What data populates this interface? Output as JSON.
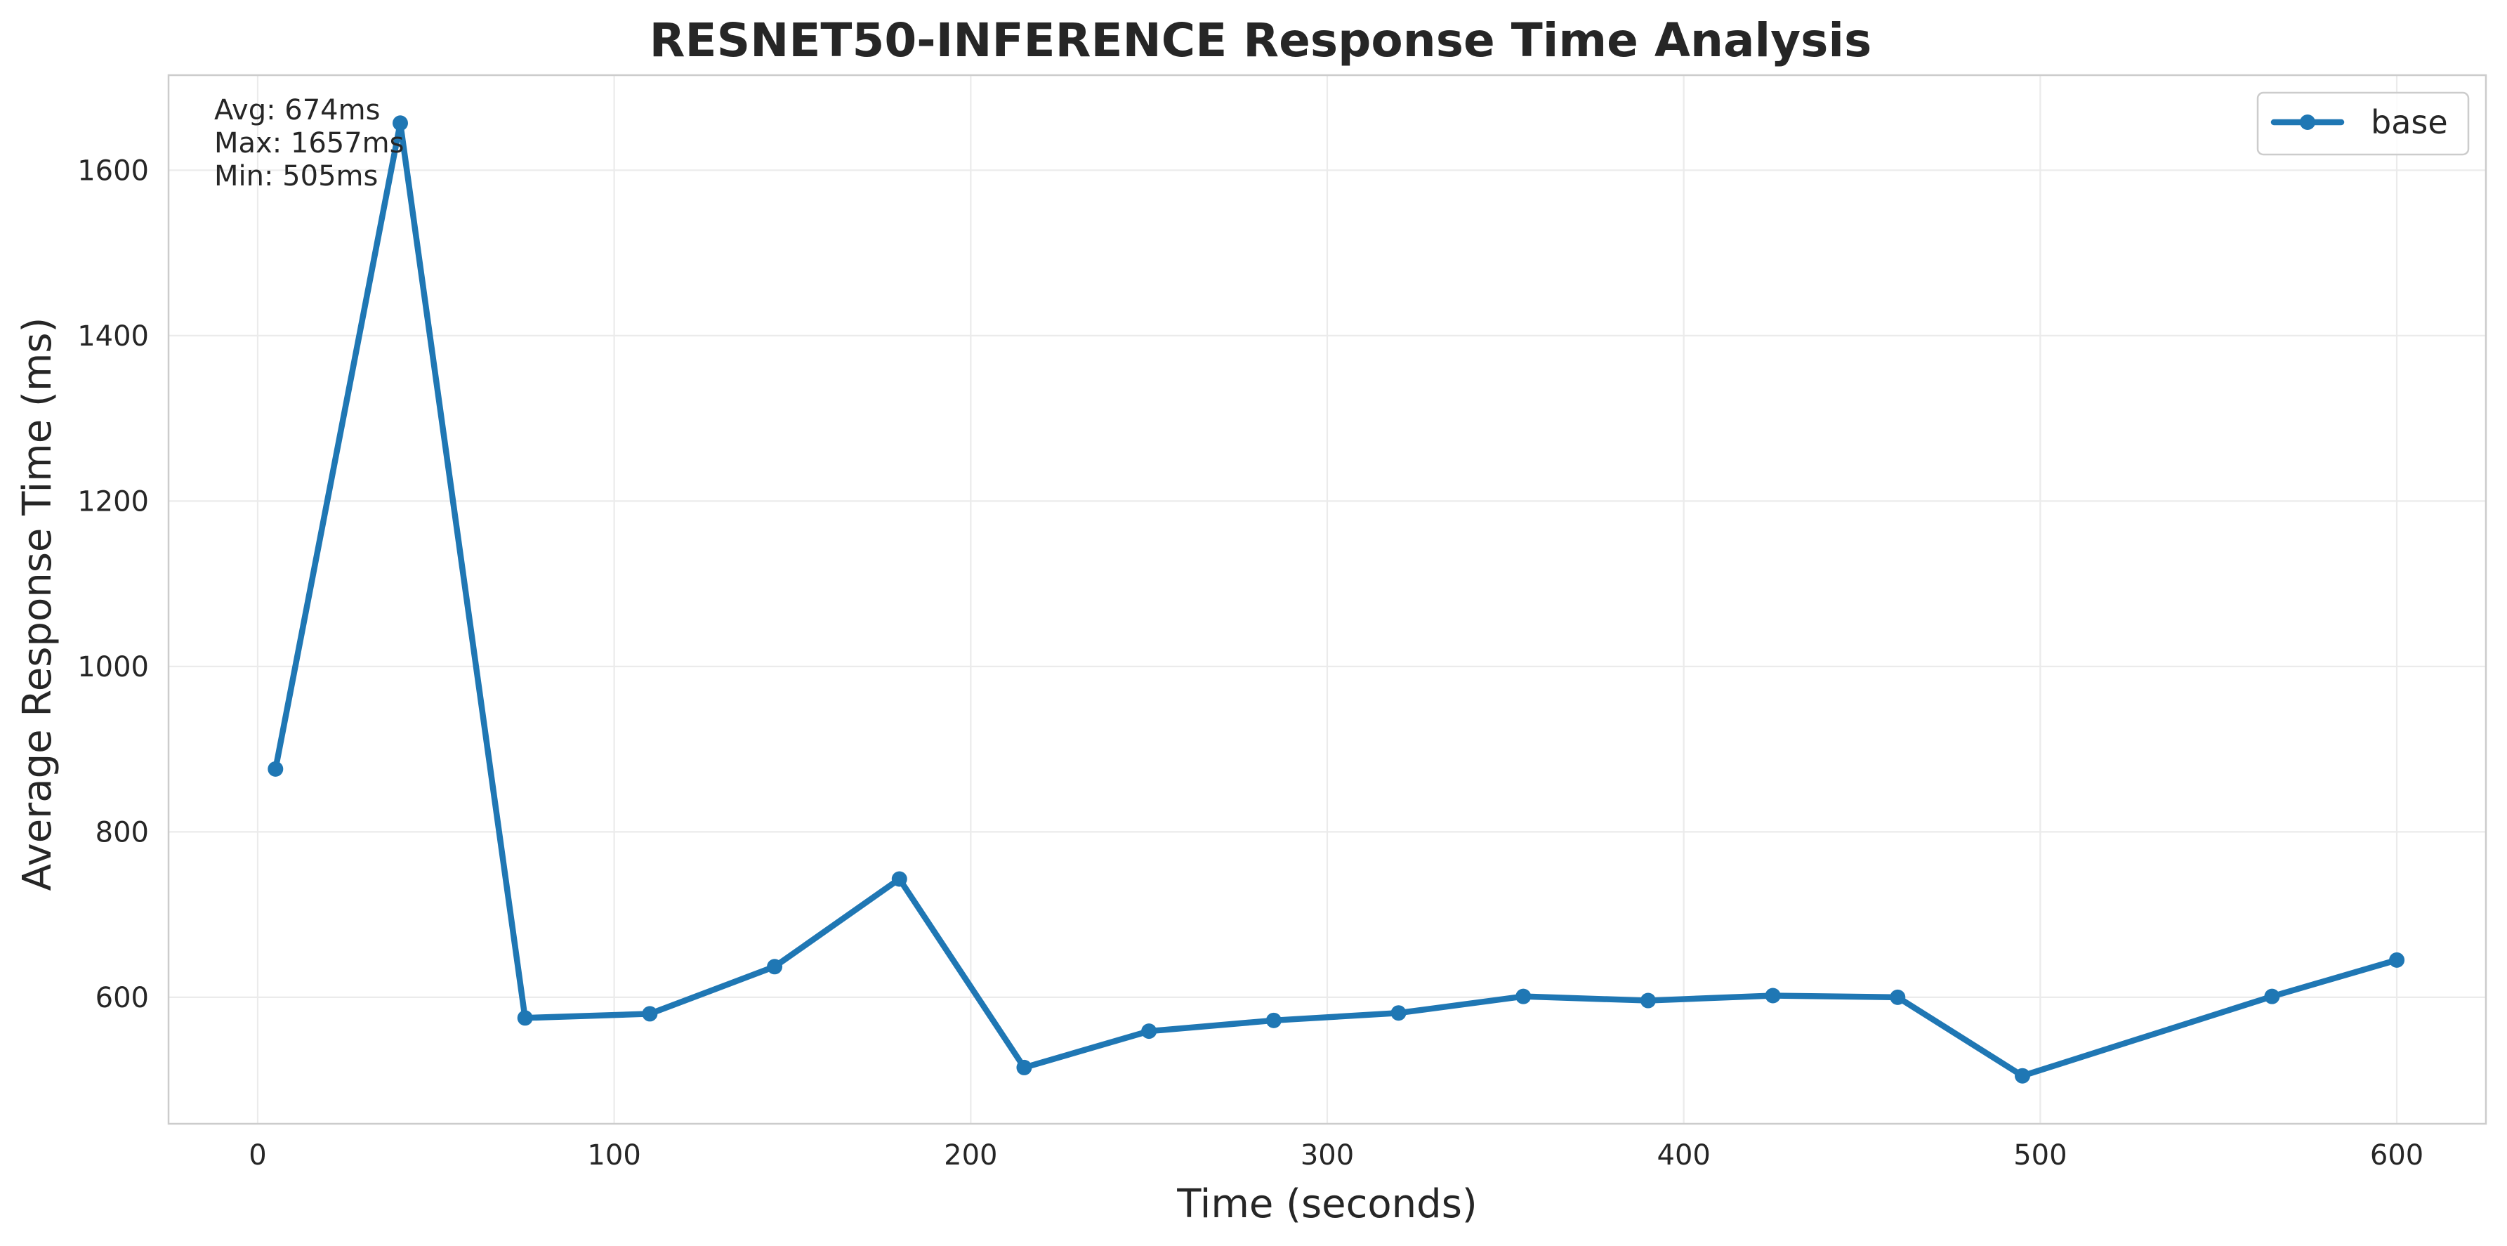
{
  "chart_data": {
    "type": "line",
    "title": "RESNET50-INFERENCE Response Time Analysis",
    "xlabel": "Time (seconds)",
    "ylabel": "Average Response Time (ms)",
    "xlim": [
      -25,
      625
    ],
    "ylim": [
      447,
      1715
    ],
    "x_ticks": [
      0,
      100,
      200,
      300,
      400,
      500,
      600
    ],
    "y_ticks": [
      600,
      800,
      1000,
      1200,
      1400,
      1600
    ],
    "grid": true,
    "legend": {
      "position": "top-right",
      "entries": [
        "base"
      ]
    },
    "annotations": [
      "Avg: 674ms",
      "Max: 1657ms",
      "Min: 505ms"
    ],
    "series": [
      {
        "name": "base",
        "color": "#1f77b4",
        "marker": "circle",
        "x": [
          5,
          40,
          75,
          110,
          145,
          180,
          215,
          250,
          285,
          320,
          355,
          390,
          425,
          460,
          495,
          565,
          600
        ],
        "y": [
          876,
          1657,
          575,
          580,
          637,
          743,
          515,
          559,
          572,
          581,
          601,
          596,
          602,
          600,
          505,
          601,
          645
        ]
      }
    ]
  }
}
